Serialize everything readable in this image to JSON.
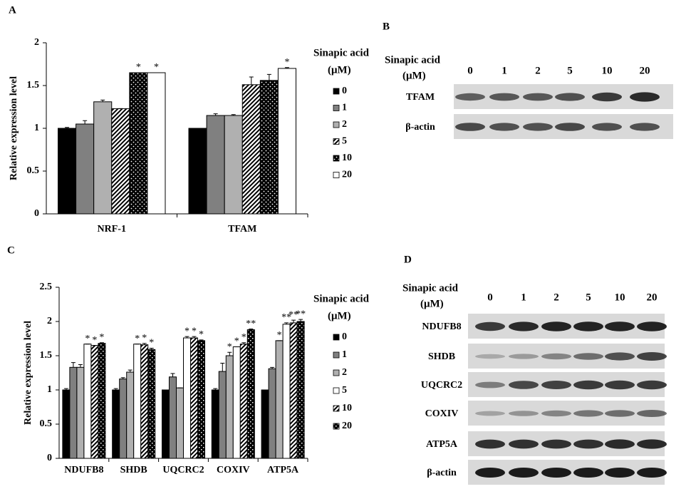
{
  "chart_data": [
    {
      "type": "bar",
      "panel_label": "A",
      "y_label": "Relative expression level",
      "categories": [
        "NRF-1",
        "TFAM"
      ],
      "legend_title": [
        "Sinapic acid",
        "(μM)"
      ],
      "ylim": [
        0,
        2
      ],
      "yticks": [
        0,
        0.5,
        1,
        1.5,
        2
      ],
      "series": [
        {
          "name": "0",
          "color": "#000000",
          "pattern": "solid",
          "values": [
            1.0,
            1.0
          ],
          "errors": [
            0.01,
            0.0
          ],
          "significance": [
            null,
            null
          ]
        },
        {
          "name": "1",
          "color": "#808080",
          "pattern": "solid",
          "values": [
            1.05,
            1.15
          ],
          "errors": [
            0.04,
            0.02
          ],
          "significance": [
            null,
            null
          ]
        },
        {
          "name": "2",
          "color": "#b0b0b0",
          "pattern": "solid",
          "values": [
            1.31,
            1.15
          ],
          "errors": [
            0.02,
            0.01
          ],
          "significance": [
            null,
            null
          ]
        },
        {
          "name": "5",
          "color": "#000000",
          "pattern": "stripes",
          "values": [
            1.23,
            1.51
          ],
          "errors": [
            0.0,
            0.09
          ],
          "significance": [
            null,
            null
          ]
        },
        {
          "name": "10",
          "color": "#000000",
          "pattern": "dots",
          "values": [
            1.65,
            1.56
          ],
          "errors": [
            0.0,
            0.07
          ],
          "significance": [
            "*",
            null
          ]
        },
        {
          "name": "20",
          "color": "#ffffff",
          "pattern": "solid",
          "values": [
            1.65,
            1.7
          ],
          "errors": [
            0.0,
            0.01
          ],
          "significance": [
            "*",
            "*"
          ]
        }
      ]
    },
    {
      "type": "bar",
      "panel_label": "C",
      "y_label": "Relative expression level",
      "categories": [
        "NDUFB8",
        "SHDB",
        "UQCRC2",
        "COXIV",
        "ATP5A"
      ],
      "legend_title": [
        "Sinapic acid",
        "(μM)"
      ],
      "ylim": [
        0,
        2.5
      ],
      "yticks": [
        0,
        0.5,
        1,
        1.5,
        2,
        2.5
      ],
      "series": [
        {
          "name": "0",
          "color": "#000000",
          "pattern": "solid",
          "values": [
            1,
            1,
            1,
            1,
            1
          ],
          "errors": [
            0.02,
            0.02,
            0.0,
            0.02,
            0.0
          ],
          "significance": [
            null,
            null,
            null,
            null,
            null
          ]
        },
        {
          "name": "1",
          "color": "#808080",
          "pattern": "solid",
          "values": [
            1.33,
            1.16,
            1.19,
            1.27,
            1.31
          ],
          "errors": [
            0.07,
            0.02,
            0.05,
            0.12,
            0.02
          ],
          "significance": [
            null,
            null,
            null,
            null,
            null
          ]
        },
        {
          "name": "2",
          "color": "#b0b0b0",
          "pattern": "solid",
          "values": [
            1.33,
            1.26,
            1.03,
            1.5,
            1.72
          ],
          "errors": [
            0.04,
            0.03,
            0.0,
            0.05,
            0.0
          ],
          "significance": [
            null,
            null,
            null,
            "*",
            "*"
          ]
        },
        {
          "name": "5",
          "color": "#ffffff",
          "pattern": "solid",
          "values": [
            1.67,
            1.67,
            1.76,
            1.63,
            1.96
          ],
          "errors": [
            0.0,
            0.0,
            0.02,
            0.0,
            0.02
          ],
          "significance": [
            "*",
            "*",
            "*",
            "*",
            "**"
          ]
        },
        {
          "name": "10",
          "color": "#000000",
          "pattern": "stripes",
          "values": [
            1.65,
            1.66,
            1.76,
            1.67,
            1.98
          ],
          "errors": [
            0.0,
            0.02,
            0.02,
            0.02,
            0.04
          ],
          "significance": [
            "*",
            "*",
            "*",
            "*",
            "**"
          ]
        },
        {
          "name": "20",
          "color": "#000000",
          "pattern": "checker",
          "values": [
            1.68,
            1.59,
            1.72,
            1.88,
            2.0
          ],
          "errors": [
            0.01,
            0.02,
            0.01,
            0.01,
            0.03
          ],
          "significance": [
            "*",
            "*",
            "*",
            "**",
            "**"
          ]
        }
      ]
    }
  ],
  "blots": [
    {
      "panel_label": "B",
      "treatment_label": [
        "Sinapic acid",
        "(μM)"
      ],
      "lanes": [
        "0",
        "1",
        "2",
        "5",
        "10",
        "20"
      ],
      "rows": [
        "TFAM",
        "β-actin"
      ]
    },
    {
      "panel_label": "D",
      "treatment_label": [
        "Sinapic acid",
        "(μM)"
      ],
      "lanes": [
        "0",
        "1",
        "2",
        "5",
        "10",
        "20"
      ],
      "rows": [
        "NDUFB8",
        "SHDB",
        "UQCRC2",
        "COXIV",
        "ATP5A",
        "β-actin"
      ]
    }
  ]
}
